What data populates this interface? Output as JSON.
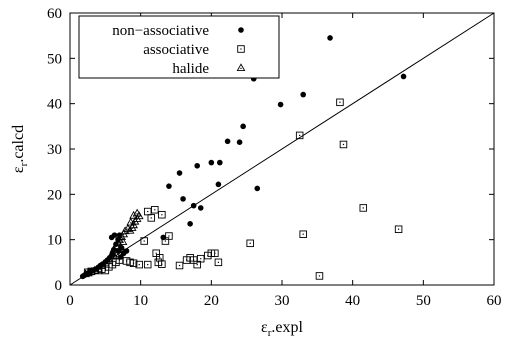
{
  "chart_data": {
    "type": "scatter",
    "title": "",
    "xlabel": {
      "main": "ε",
      "sub": "r",
      "rest": ".expl"
    },
    "ylabel": {
      "main": "ε",
      "sub": "r",
      "rest": ".calcd"
    },
    "xlim": [
      0,
      60
    ],
    "ylim": [
      0,
      60
    ],
    "xticks": [
      0,
      10,
      20,
      30,
      40,
      50,
      60
    ],
    "yticks": [
      0,
      10,
      20,
      30,
      40,
      50,
      60
    ],
    "grid": false,
    "legend_position": "top-left",
    "reference_line": {
      "from": [
        0,
        0
      ],
      "to": [
        60,
        60
      ]
    },
    "series": [
      {
        "name": "non−associative",
        "marker": "filled-circle",
        "points": [
          [
            1.8,
            1.9
          ],
          [
            2.0,
            2.1
          ],
          [
            2.2,
            2.3
          ],
          [
            2.4,
            2.5
          ],
          [
            2.7,
            2.8
          ],
          [
            3.0,
            3.0
          ],
          [
            3.3,
            3.3
          ],
          [
            3.6,
            3.5
          ],
          [
            4.0,
            3.9
          ],
          [
            4.3,
            4.3
          ],
          [
            4.6,
            4.6
          ],
          [
            5.0,
            5.1
          ],
          [
            5.3,
            5.5
          ],
          [
            5.6,
            6.0
          ],
          [
            6.0,
            6.8
          ],
          [
            6.2,
            7.8
          ],
          [
            6.5,
            9.0
          ],
          [
            6.8,
            10.0
          ],
          [
            5.9,
            10.5
          ],
          [
            6.3,
            11.0
          ],
          [
            7.0,
            11.0
          ],
          [
            6.9,
            7.5
          ],
          [
            7.3,
            8.2
          ],
          [
            7.6,
            7.0
          ],
          [
            7.2,
            6.2
          ],
          [
            8.0,
            7.5
          ],
          [
            13.2,
            10.5
          ],
          [
            14.0,
            21.8
          ],
          [
            15.5,
            24.7
          ],
          [
            16.0,
            19.0
          ],
          [
            17.0,
            13.5
          ],
          [
            17.5,
            17.5
          ],
          [
            18.0,
            26.3
          ],
          [
            18.5,
            17.0
          ],
          [
            20.0,
            27.0
          ],
          [
            21.0,
            22.2
          ],
          [
            21.2,
            27.0
          ],
          [
            22.3,
            31.7
          ],
          [
            24.0,
            31.5
          ],
          [
            24.5,
            35.0
          ],
          [
            26.0,
            45.5
          ],
          [
            26.5,
            21.3
          ],
          [
            29.8,
            39.8
          ],
          [
            33.0,
            42.0
          ],
          [
            36.8,
            54.5
          ],
          [
            47.2,
            46.0
          ]
        ]
      },
      {
        "name": "associative",
        "marker": "open-square",
        "points": [
          [
            2.5,
            2.8
          ],
          [
            3.0,
            3.0
          ],
          [
            4.0,
            3.2
          ],
          [
            4.5,
            3.5
          ],
          [
            5.0,
            3.2
          ],
          [
            5.5,
            4.0
          ],
          [
            6.0,
            4.5
          ],
          [
            6.5,
            5.0
          ],
          [
            7.0,
            5.5
          ],
          [
            8.0,
            5.3
          ],
          [
            8.5,
            5.0
          ],
          [
            9.0,
            4.8
          ],
          [
            9.8,
            4.5
          ],
          [
            10.5,
            9.7
          ],
          [
            11.0,
            4.5
          ],
          [
            11.0,
            16.2
          ],
          [
            11.5,
            14.8
          ],
          [
            12.0,
            16.6
          ],
          [
            12.5,
            5.0
          ],
          [
            12.2,
            7.0
          ],
          [
            12.7,
            6.0
          ],
          [
            13.0,
            4.6
          ],
          [
            13.0,
            15.5
          ],
          [
            13.5,
            9.7
          ],
          [
            14.0,
            10.8
          ],
          [
            15.5,
            4.3
          ],
          [
            16.5,
            5.5
          ],
          [
            17.0,
            6.0
          ],
          [
            17.5,
            5.5
          ],
          [
            18.0,
            4.5
          ],
          [
            18.5,
            5.8
          ],
          [
            19.5,
            6.5
          ],
          [
            20.0,
            7.0
          ],
          [
            20.5,
            7.0
          ],
          [
            21.0,
            5.0
          ],
          [
            25.5,
            9.2
          ],
          [
            32.5,
            33.0
          ],
          [
            33.0,
            11.2
          ],
          [
            35.3,
            2.0
          ],
          [
            38.2,
            40.3
          ],
          [
            38.7,
            31.0
          ],
          [
            41.5,
            17.0
          ],
          [
            46.5,
            12.3
          ]
        ]
      },
      {
        "name": "halide",
        "marker": "open-triangle",
        "points": [
          [
            2.2,
            2.4
          ],
          [
            2.6,
            2.6
          ],
          [
            3.0,
            2.9
          ],
          [
            3.5,
            3.2
          ],
          [
            4.0,
            3.6
          ],
          [
            4.5,
            4.2
          ],
          [
            5.0,
            4.8
          ],
          [
            5.5,
            5.6
          ],
          [
            5.8,
            6.3
          ],
          [
            6.0,
            7.0
          ],
          [
            6.2,
            7.8
          ],
          [
            6.5,
            8.6
          ],
          [
            6.8,
            9.3
          ],
          [
            7.0,
            10.0
          ],
          [
            7.3,
            10.6
          ],
          [
            7.6,
            11.2
          ],
          [
            7.8,
            11.9
          ],
          [
            8.2,
            12.4
          ],
          [
            8.5,
            12.0
          ],
          [
            8.8,
            12.6
          ],
          [
            9.0,
            13.2
          ],
          [
            9.2,
            14.0
          ],
          [
            9.5,
            14.6
          ],
          [
            9.8,
            15.2
          ],
          [
            9.5,
            15.8
          ],
          [
            9.0,
            15.3
          ],
          [
            8.6,
            13.8
          ],
          [
            7.5,
            9.5
          ],
          [
            6.6,
            6.5
          ],
          [
            7.2,
            8.3
          ]
        ]
      }
    ]
  }
}
